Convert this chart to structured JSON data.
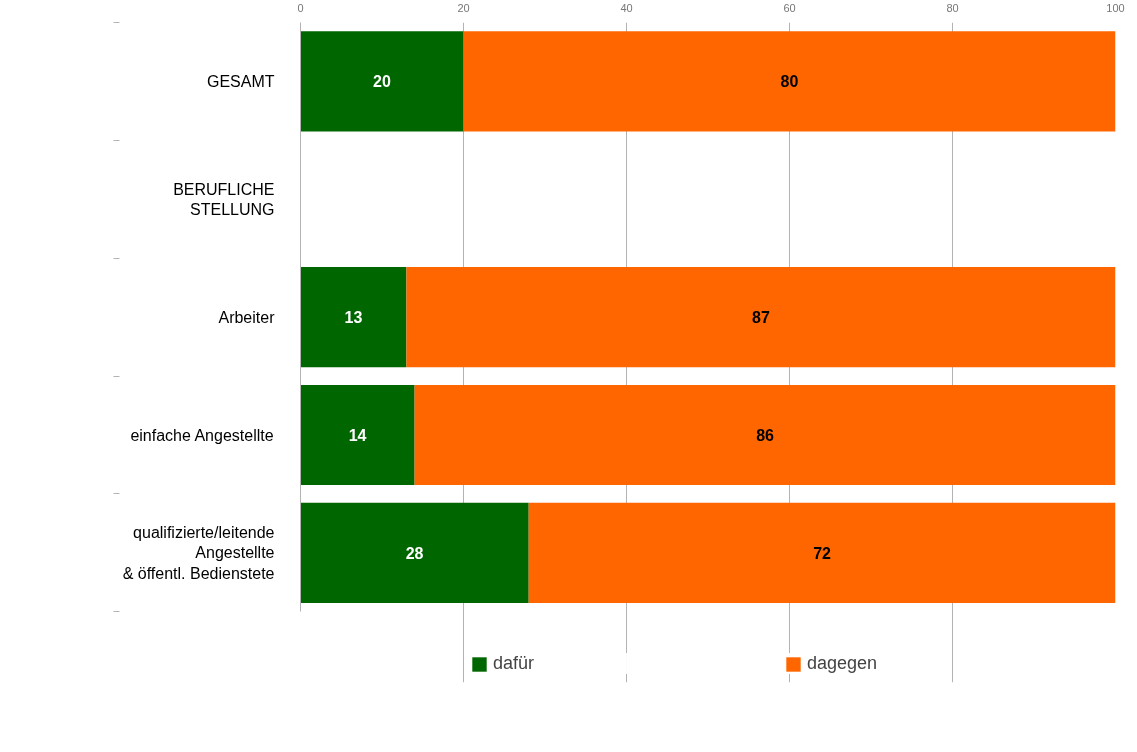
{
  "chart_data": {
    "type": "bar",
    "orientation": "horizontal",
    "stacked": true,
    "categories": [
      "GESAMT",
      "BERUFLICHE\nSTELLUNG",
      "Arbeiter",
      "einfache Angestellte",
      "qualifizierte/leitende\nAngestellte\n& öffentl. Bedienstete"
    ],
    "series": [
      {
        "name": "dafür",
        "color": "#006600",
        "values": [
          20,
          null,
          13,
          14,
          28
        ]
      },
      {
        "name": "dagegen",
        "color": "#ff6600",
        "values": [
          80,
          null,
          87,
          86,
          72
        ]
      }
    ],
    "xlim": [
      0,
      100
    ],
    "xticks": [
      0,
      20,
      40,
      60,
      80,
      100
    ],
    "grid": "x",
    "legend": "bottom",
    "data_labels": true
  }
}
